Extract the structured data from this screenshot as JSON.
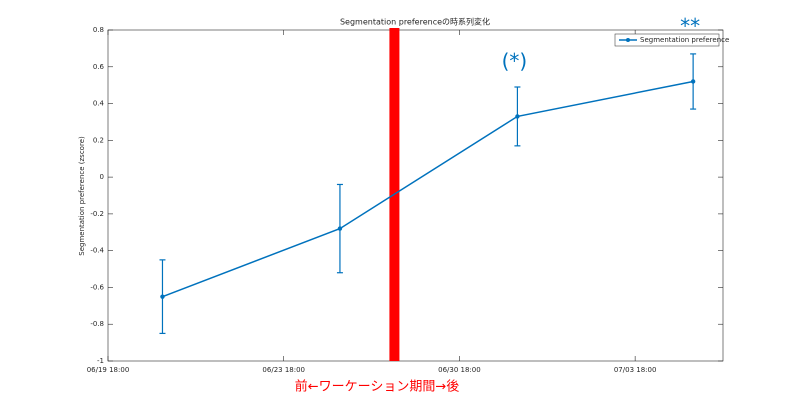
{
  "chart_data": {
    "type": "errorbar",
    "title": "Segmentation preferenceの時系列変化",
    "ylabel": "Segmentation preference (zscore)",
    "xlabel": "前←ワーケーション期間→後",
    "xlim": [
      0,
      3.5
    ],
    "xticks": [
      {
        "value": 0,
        "label": "06/19 18:00"
      },
      {
        "value": 1,
        "label": "06/23 18:00"
      },
      {
        "value": 2,
        "label": "06/30 18:00"
      },
      {
        "value": 3,
        "label": "07/03 18:00"
      }
    ],
    "ylim": [
      -1,
      0.8
    ],
    "yticks": [
      -1,
      -0.8,
      -0.6,
      -0.4,
      -0.2,
      0,
      0.2,
      0.4,
      0.6,
      0.8
    ],
    "legend": "northeast",
    "series": [
      {
        "name": "Segmentation preference",
        "color": "#0072bd",
        "x": [
          0.31,
          1.32,
          2.33,
          3.33
        ],
        "values": [
          -0.65,
          -0.28,
          0.33,
          0.52
        ],
        "errors": [
          0.2,
          0.24,
          0.16,
          0.15
        ]
      }
    ],
    "vline": {
      "x": 1.63,
      "color": "#ff0000"
    },
    "annotations": [
      {
        "text": "(*)",
        "x": 2.33,
        "y": 0.33
      },
      {
        "text": "**",
        "x": 3.33,
        "y": 0.52
      }
    ]
  }
}
